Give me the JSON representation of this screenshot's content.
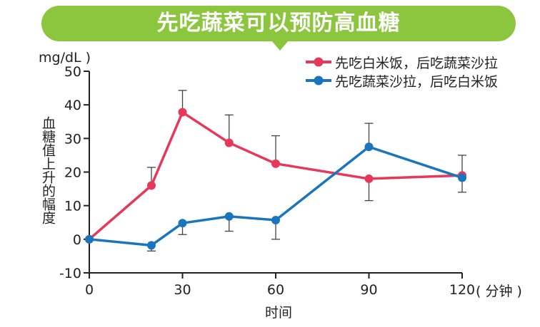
{
  "chart_data": {
    "type": "line",
    "title": "先吃蔬菜可以预防高血糖",
    "ylabel_unit": "mg/dL )",
    "ylabel": "血糖值上升的幅度",
    "xlabel": "时间",
    "xlabel_unit": "( 分钟 )",
    "x_ticks": [
      0,
      30,
      60,
      90,
      120
    ],
    "y_ticks": [
      50,
      40,
      30,
      20,
      10,
      0,
      -10
    ],
    "xlim": [
      0,
      120
    ],
    "ylim": [
      -10,
      50
    ],
    "legend_position": "top-right",
    "series": [
      {
        "name": "先吃白米饭，后吃蔬菜沙拉",
        "color": "#e8385a",
        "x": [
          0,
          20,
          30,
          45,
          60,
          90,
          120
        ],
        "y": [
          0,
          16,
          37.8,
          28.7,
          22.5,
          18,
          19
        ],
        "err_upper": [
          null,
          21.4,
          44.3,
          37,
          30.8,
          null,
          25
        ],
        "err_lower": [
          null,
          null,
          null,
          null,
          null,
          11.5,
          null
        ]
      },
      {
        "name": "先吃蔬菜沙拉，后吃白米饭",
        "color": "#1b75bc",
        "x": [
          0,
          20,
          30,
          45,
          60,
          90,
          120
        ],
        "y": [
          0,
          -1.8,
          4.8,
          6.8,
          5.7,
          27.5,
          18.3
        ],
        "err_upper": [
          null,
          null,
          null,
          null,
          null,
          34.5,
          null
        ],
        "err_lower": [
          null,
          -3.5,
          1.4,
          2.4,
          0,
          null,
          14
        ]
      }
    ]
  }
}
